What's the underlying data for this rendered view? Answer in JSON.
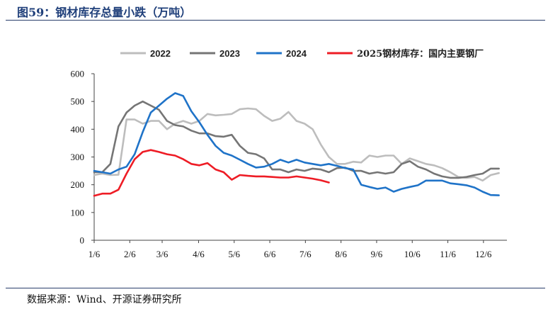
{
  "figure": {
    "title": "图59：钢材库存总量小跌（万吨）",
    "source": "数据来源：Wind、开源证券研究所"
  },
  "chart_data": {
    "type": "line",
    "title": "图59：钢材库存总量小跌（万吨）",
    "xlabel": "",
    "ylabel": "",
    "ylim": [
      0,
      600
    ],
    "yticks": [
      "0",
      "100",
      "200",
      "300",
      "400",
      "500",
      "600"
    ],
    "x_unit": "week",
    "xlim": [
      0,
      51
    ],
    "x_tick_labels": [
      "1/6",
      "2/6",
      "3/6",
      "4/6",
      "5/6",
      "6/6",
      "7/6",
      "8/6",
      "9/6",
      "10/6",
      "11/6",
      "12/6"
    ],
    "x_tick_positions": [
      0,
      4.4,
      8.4,
      12.9,
      17.3,
      21.7,
      26.1,
      30.5,
      34.9,
      39.3,
      43.7,
      48.1
    ],
    "grid": false,
    "legend_position": "top",
    "series": [
      {
        "name": "2022",
        "color": "#bdbdbd",
        "values": [
          235,
          240,
          235,
          236,
          435,
          435,
          420,
          430,
          430,
          400,
          420,
          430,
          420,
          430,
          455,
          450,
          452,
          455,
          472,
          475,
          472,
          448,
          430,
          438,
          462,
          430,
          420,
          400,
          345,
          300,
          275,
          275,
          283,
          280,
          305,
          300,
          305,
          305,
          275,
          295,
          285,
          275,
          270,
          260,
          245,
          228,
          225,
          228,
          215,
          235,
          242
        ]
      },
      {
        "name": "2023",
        "color": "#757575",
        "values": [
          245,
          245,
          275,
          410,
          460,
          485,
          500,
          485,
          470,
          430,
          415,
          410,
          395,
          385,
          385,
          375,
          373,
          380,
          340,
          315,
          310,
          295,
          255,
          255,
          245,
          255,
          250,
          258,
          255,
          245,
          260,
          262,
          250,
          250,
          240,
          245,
          240,
          245,
          275,
          285,
          265,
          255,
          240,
          230,
          225,
          225,
          228,
          235,
          240,
          258,
          258
        ]
      },
      {
        "name": "2024",
        "color": "#1f73c8",
        "values": [
          250,
          245,
          240,
          255,
          265,
          310,
          390,
          460,
          485,
          510,
          530,
          520,
          465,
          425,
          380,
          340,
          315,
          305,
          290,
          275,
          262,
          265,
          275,
          290,
          280,
          290,
          280,
          275,
          270,
          275,
          268,
          260,
          255,
          200,
          192,
          185,
          190,
          175,
          185,
          192,
          198,
          215,
          215,
          215,
          205,
          202,
          198,
          190,
          175,
          163,
          162
        ]
      },
      {
        "name": "2025钢材库存：国内主要钢厂",
        "color": "#ee1c25",
        "values": [
          160,
          168,
          168,
          182,
          240,
          292,
          318,
          325,
          318,
          310,
          305,
          292,
          275,
          270,
          278,
          255,
          245,
          218,
          235,
          232,
          230,
          230,
          228,
          226,
          226,
          230,
          226,
          222,
          216,
          208
        ]
      }
    ]
  }
}
